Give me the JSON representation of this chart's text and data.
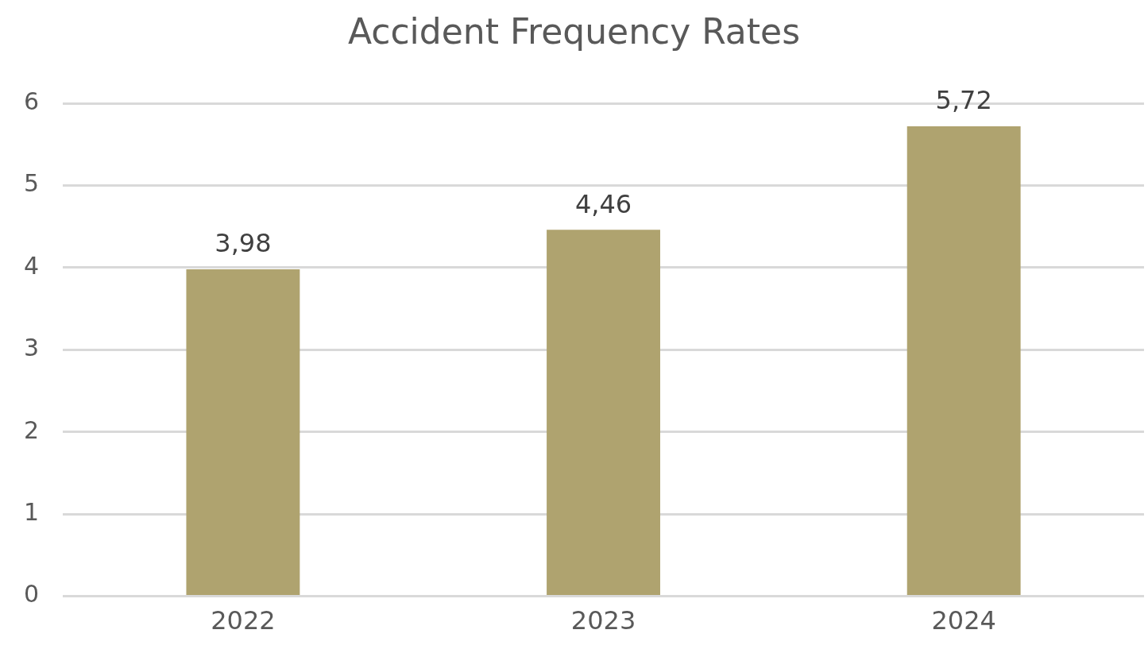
{
  "chart_data": {
    "type": "bar",
    "title": "Accident Frequency Rates",
    "categories": [
      "2022",
      "2023",
      "2024"
    ],
    "values": [
      3.98,
      4.46,
      5.72
    ],
    "value_labels": [
      "3,98",
      "4,46",
      "5,72"
    ],
    "color": "#afa36f",
    "ylim": [
      0,
      6
    ],
    "yticks": [
      0,
      1,
      2,
      3,
      4,
      5,
      6
    ],
    "grid": "y",
    "legend": false
  }
}
